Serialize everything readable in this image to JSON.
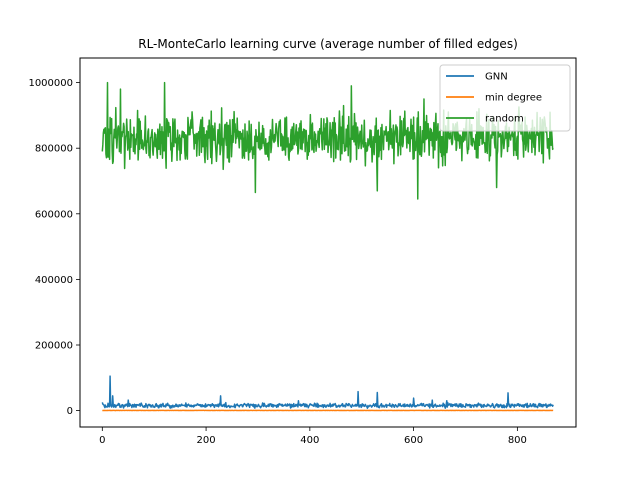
{
  "chart_data": {
    "type": "line",
    "title": "RL-MonteCarlo learning curve (average number of filled edges)",
    "xlabel": "",
    "ylabel": "",
    "xlim": [
      -43,
      913
    ],
    "ylim": [
      -50000,
      1075000
    ],
    "x_ticks": [
      0,
      200,
      400,
      600,
      800
    ],
    "y_ticks": [
      0,
      200000,
      400000,
      600000,
      800000,
      1000000
    ],
    "x_tick_labels": [
      "0",
      "200",
      "400",
      "600",
      "800"
    ],
    "y_tick_labels": [
      "0",
      "200000",
      "400000",
      "600000",
      "800000",
      "1000000"
    ],
    "legend_position": "top-right",
    "grid": false,
    "n_points": 870,
    "series": [
      {
        "name": "GNN",
        "color": "#1f77b4",
        "summary": {
          "typical_min": 6000,
          "typical_max": 25000
        },
        "key_points": [
          {
            "x": 0,
            "y": 25000
          },
          {
            "x": 15,
            "y": 105000
          },
          {
            "x": 20,
            "y": 45000
          },
          {
            "x": 50,
            "y": 32000
          },
          {
            "x": 228,
            "y": 45000
          },
          {
            "x": 378,
            "y": 30000
          },
          {
            "x": 493,
            "y": 58000
          },
          {
            "x": 530,
            "y": 55000
          },
          {
            "x": 600,
            "y": 38000
          },
          {
            "x": 636,
            "y": 32000
          },
          {
            "x": 664,
            "y": 30000
          },
          {
            "x": 782,
            "y": 54000
          },
          {
            "x": 870,
            "y": 18000
          }
        ]
      },
      {
        "name": "min degree",
        "color": "#ff7f0e",
        "summary": {
          "typical_min": 0,
          "typical_max": 1000
        },
        "key_points": [
          {
            "x": 0,
            "y": 500
          },
          {
            "x": 870,
            "y": 500
          }
        ]
      },
      {
        "name": "random",
        "color": "#2ca02c",
        "summary": {
          "typical_min": 720000,
          "typical_max": 940000
        },
        "key_points": [
          {
            "x": 0,
            "y": 790000
          },
          {
            "x": 10,
            "y": 1000000
          },
          {
            "x": 35,
            "y": 980000
          },
          {
            "x": 120,
            "y": 1000000
          },
          {
            "x": 295,
            "y": 665000
          },
          {
            "x": 480,
            "y": 990000
          },
          {
            "x": 530,
            "y": 670000
          },
          {
            "x": 608,
            "y": 645000
          },
          {
            "x": 620,
            "y": 950000
          },
          {
            "x": 760,
            "y": 680000
          },
          {
            "x": 870,
            "y": 800000
          }
        ]
      }
    ]
  }
}
